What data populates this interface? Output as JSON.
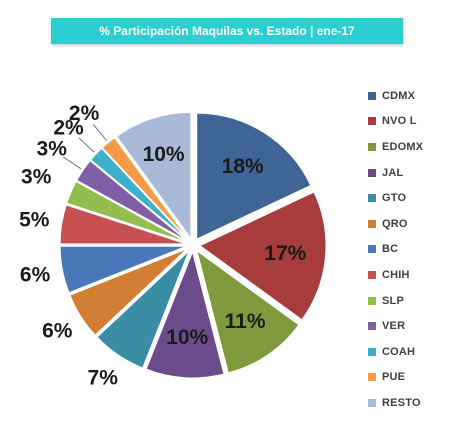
{
  "chart_data": {
    "type": "pie",
    "title": "% Participación Maquilas vs. Estado | ene-17",
    "unit": "%",
    "categories": [
      "CDMX",
      "NVO L",
      "EDOMX",
      "JAL",
      "GTO",
      "QRO",
      "BC",
      "CHIH",
      "SLP",
      "VER",
      "COAH",
      "PUE",
      "RESTO"
    ],
    "values": [
      18,
      17,
      11,
      10,
      7,
      6,
      6,
      5,
      3,
      3,
      2,
      2,
      10
    ],
    "value_labels": [
      "18%",
      "17%",
      "11%",
      "10%",
      "7%",
      "6%",
      "6%",
      "5%",
      "3%",
      "3%",
      "2%",
      "2%",
      "10%"
    ],
    "colors": [
      "#3e6596",
      "#a63c3c",
      "#7f9a3c",
      "#6a4c8a",
      "#3a8da3",
      "#d27f35",
      "#4a78b8",
      "#c85050",
      "#93be4e",
      "#7f5fa6",
      "#3fb0cc",
      "#f59a45",
      "#a9b9d8"
    ],
    "legend_position": "right",
    "exploded": true
  }
}
